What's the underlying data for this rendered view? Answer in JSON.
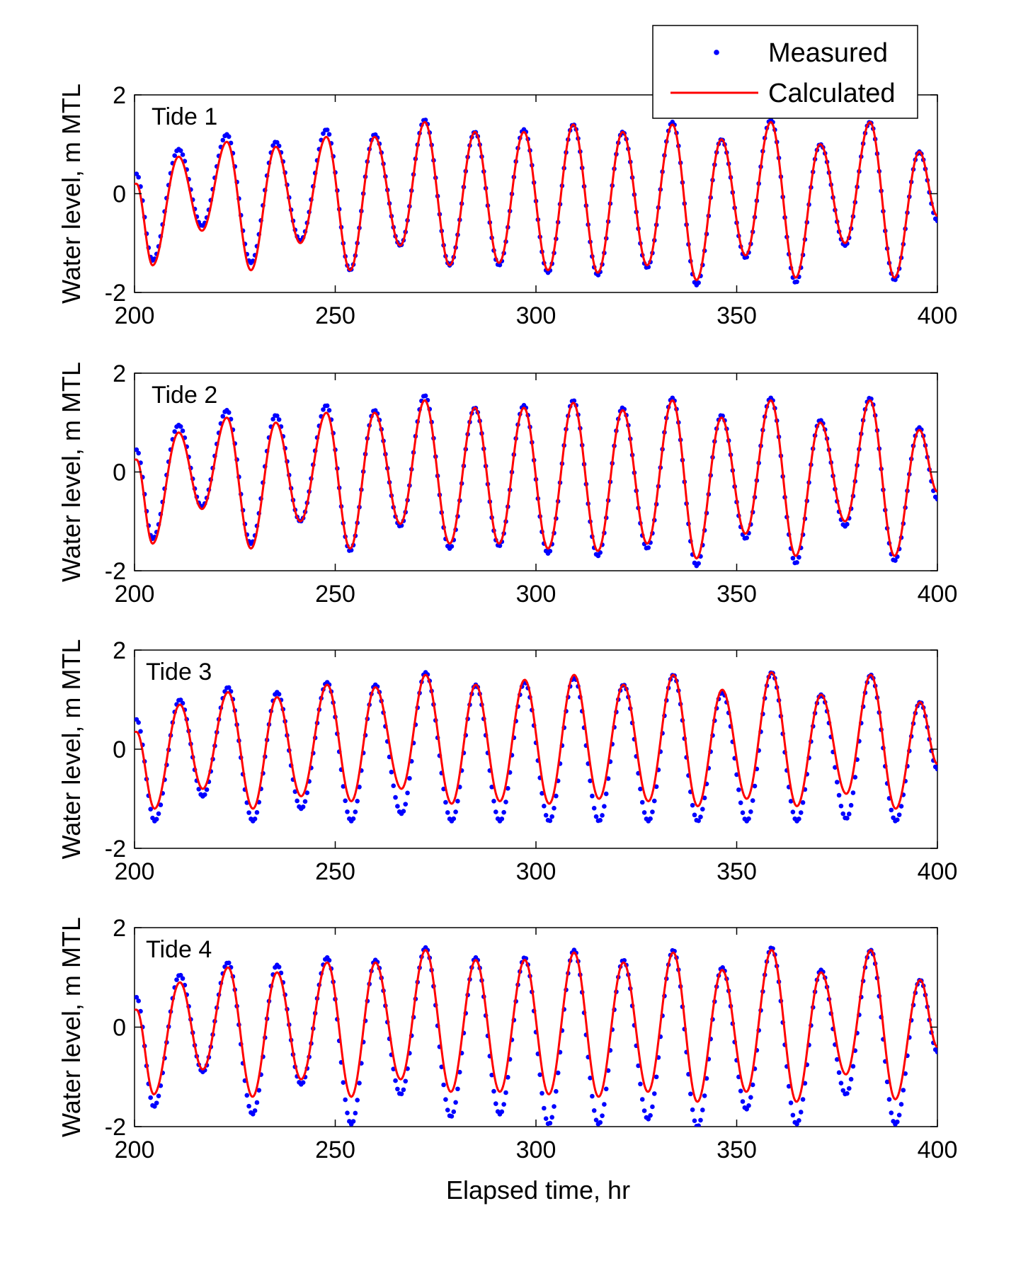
{
  "figure": {
    "xlabel": "Elapsed time, hr",
    "legend": {
      "placement": "top-right",
      "entries": [
        {
          "label": "Measured",
          "style": "dots",
          "color": "#0000ff"
        },
        {
          "label": "Calculated",
          "style": "line",
          "color": "#ff0000"
        }
      ]
    }
  },
  "chart_data": [
    {
      "type": "line",
      "title": "Tide 1",
      "xlabel": "",
      "ylabel": "Water level, m MTL",
      "xlim": [
        200,
        400
      ],
      "ylim": [
        -2,
        2
      ],
      "xticks": [
        "200",
        "250",
        "300",
        "350",
        "400"
      ],
      "yticks": [
        "2",
        "0",
        "-2"
      ],
      "grid": false,
      "x": [
        200.5,
        204.5,
        211.0,
        216.8,
        223.0,
        229.0,
        235.2,
        241.3,
        247.8,
        253.7,
        259.8,
        266.2,
        272.3,
        278.5,
        284.8,
        290.8,
        297.0,
        303.0,
        309.3,
        315.4,
        321.6,
        327.7,
        334.0,
        340.0,
        346.2,
        352.2,
        358.5,
        364.7,
        370.8,
        377.0,
        383.2,
        389.3,
        395.5,
        400.0
      ],
      "series": [
        {
          "name": "Measured",
          "values": [
            0.4,
            -1.35,
            0.9,
            -0.65,
            1.2,
            -1.4,
            1.05,
            -0.95,
            1.3,
            -1.55,
            1.2,
            -1.05,
            1.5,
            -1.45,
            1.25,
            -1.45,
            1.3,
            -1.6,
            1.4,
            -1.65,
            1.25,
            -1.5,
            1.45,
            -1.85,
            1.1,
            -1.3,
            1.5,
            -1.8,
            1.0,
            -1.05,
            1.45,
            -1.75,
            0.85,
            -0.55
          ]
        },
        {
          "name": "Calculated",
          "values": [
            0.2,
            -1.45,
            0.75,
            -0.75,
            1.05,
            -1.55,
            0.95,
            -1.0,
            1.15,
            -1.55,
            1.15,
            -1.05,
            1.45,
            -1.45,
            1.25,
            -1.4,
            1.25,
            -1.55,
            1.4,
            -1.6,
            1.25,
            -1.45,
            1.4,
            -1.75,
            1.1,
            -1.25,
            1.45,
            -1.7,
            1.0,
            -1.0,
            1.45,
            -1.7,
            0.85,
            -0.45
          ]
        }
      ]
    },
    {
      "type": "line",
      "title": "Tide 2",
      "xlabel": "",
      "ylabel": "Water level, m MTL",
      "xlim": [
        200,
        400
      ],
      "ylim": [
        -2,
        2
      ],
      "xticks": [
        "200",
        "250",
        "300",
        "350",
        "400"
      ],
      "yticks": [
        "2",
        "0",
        "-2"
      ],
      "grid": false,
      "x": [
        200.5,
        204.5,
        211.0,
        216.8,
        223.0,
        229.0,
        235.2,
        241.3,
        247.8,
        253.7,
        259.8,
        266.2,
        272.3,
        278.5,
        284.8,
        290.8,
        297.0,
        303.0,
        309.3,
        315.4,
        321.6,
        327.7,
        334.0,
        340.0,
        346.2,
        352.2,
        358.5,
        364.7,
        370.8,
        377.0,
        383.2,
        389.3,
        395.5,
        400.0
      ],
      "series": [
        {
          "name": "Measured",
          "values": [
            0.45,
            -1.35,
            0.95,
            -0.7,
            1.25,
            -1.45,
            1.15,
            -1.0,
            1.35,
            -1.6,
            1.25,
            -1.1,
            1.55,
            -1.55,
            1.3,
            -1.5,
            1.35,
            -1.65,
            1.45,
            -1.7,
            1.3,
            -1.55,
            1.5,
            -1.9,
            1.15,
            -1.35,
            1.5,
            -1.85,
            1.05,
            -1.1,
            1.5,
            -1.8,
            0.9,
            -0.55
          ]
        },
        {
          "name": "Calculated",
          "values": [
            0.25,
            -1.45,
            0.8,
            -0.75,
            1.1,
            -1.55,
            1.0,
            -1.0,
            1.2,
            -1.55,
            1.2,
            -1.05,
            1.45,
            -1.45,
            1.3,
            -1.45,
            1.3,
            -1.55,
            1.4,
            -1.6,
            1.25,
            -1.45,
            1.45,
            -1.75,
            1.1,
            -1.25,
            1.45,
            -1.7,
            1.0,
            -1.0,
            1.45,
            -1.7,
            0.85,
            -0.4
          ]
        }
      ]
    },
    {
      "type": "line",
      "title": "Tide 3",
      "xlabel": "",
      "ylabel": "Water level, m MTL",
      "xlim": [
        200,
        400
      ],
      "ylim": [
        -2,
        2
      ],
      "xticks": [
        "200",
        "250",
        "300",
        "350",
        "400"
      ],
      "yticks": [
        "2",
        "0",
        "-2"
      ],
      "grid": false,
      "x": [
        200.5,
        205.0,
        211.3,
        217.0,
        223.3,
        229.5,
        235.5,
        241.5,
        248.0,
        254.0,
        260.0,
        266.5,
        272.5,
        279.0,
        285.0,
        291.0,
        297.2,
        303.3,
        309.5,
        315.7,
        321.8,
        328.0,
        334.2,
        340.3,
        346.4,
        352.5,
        358.7,
        365.0,
        371.0,
        377.3,
        383.4,
        389.6,
        395.7,
        400.0
      ],
      "series": [
        {
          "name": "Measured",
          "values": [
            0.6,
            -1.45,
            1.0,
            -0.95,
            1.25,
            -1.45,
            1.15,
            -1.2,
            1.35,
            -1.45,
            1.3,
            -1.3,
            1.55,
            -1.45,
            1.3,
            -1.45,
            1.35,
            -1.45,
            1.45,
            -1.45,
            1.3,
            -1.45,
            1.5,
            -1.45,
            1.15,
            -1.45,
            1.55,
            -1.45,
            1.1,
            -1.4,
            1.5,
            -1.45,
            0.95,
            -0.4
          ]
        },
        {
          "name": "Calculated",
          "values": [
            0.35,
            -1.2,
            0.9,
            -0.8,
            1.15,
            -1.2,
            1.05,
            -0.95,
            1.3,
            -1.05,
            1.25,
            -0.8,
            1.5,
            -1.1,
            1.3,
            -1.05,
            1.4,
            -1.1,
            1.5,
            -1.0,
            1.3,
            -1.05,
            1.5,
            -1.15,
            1.2,
            -1.0,
            1.55,
            -1.15,
            1.1,
            -0.9,
            1.5,
            -1.2,
            0.95,
            -0.3
          ]
        }
      ]
    },
    {
      "type": "line",
      "title": "Tide 4",
      "xlabel": "Elapsed time, hr",
      "ylabel": "Water level, m MTL",
      "xlim": [
        200,
        400
      ],
      "ylim": [
        -2,
        2
      ],
      "xticks": [
        "200",
        "250",
        "300",
        "350",
        "400"
      ],
      "yticks": [
        "2",
        "0",
        "-2"
      ],
      "grid": false,
      "x": [
        200.5,
        204.8,
        211.3,
        217.0,
        223.3,
        229.4,
        235.5,
        241.5,
        248.0,
        254.0,
        260.0,
        266.3,
        272.5,
        278.8,
        285.0,
        291.0,
        297.2,
        303.2,
        309.5,
        315.6,
        321.8,
        327.9,
        334.2,
        340.2,
        346.4,
        352.4,
        358.7,
        364.9,
        371.0,
        377.2,
        383.4,
        389.5,
        395.7,
        400.0
      ],
      "series": [
        {
          "name": "Measured",
          "values": [
            0.6,
            -1.6,
            1.05,
            -0.9,
            1.3,
            -1.75,
            1.25,
            -1.15,
            1.4,
            -1.95,
            1.35,
            -1.35,
            1.6,
            -1.8,
            1.4,
            -1.75,
            1.4,
            -1.95,
            1.55,
            -1.95,
            1.35,
            -1.85,
            1.55,
            -2.0,
            1.2,
            -1.65,
            1.6,
            -1.95,
            1.15,
            -1.35,
            1.55,
            -1.95,
            0.95,
            -0.5
          ]
        },
        {
          "name": "Calculated",
          "values": [
            0.35,
            -1.35,
            0.9,
            -0.85,
            1.2,
            -1.4,
            1.1,
            -1.05,
            1.3,
            -1.4,
            1.3,
            -1.05,
            1.55,
            -1.3,
            1.35,
            -1.3,
            1.35,
            -1.35,
            1.5,
            -1.4,
            1.3,
            -1.3,
            1.5,
            -1.5,
            1.15,
            -1.3,
            1.55,
            -1.5,
            1.1,
            -0.95,
            1.55,
            -1.45,
            0.95,
            -0.4
          ]
        }
      ]
    }
  ]
}
